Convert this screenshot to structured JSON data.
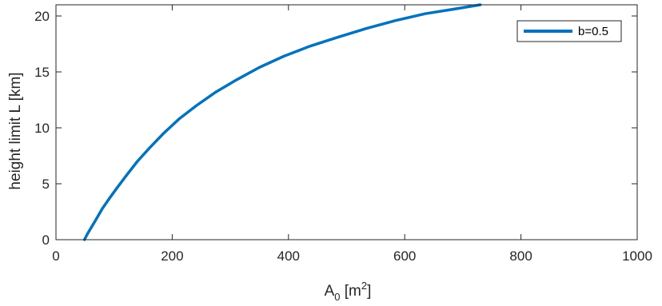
{
  "chart_data": {
    "type": "line",
    "xlabel": {
      "base": "A",
      "sub": "0",
      "unit_open": " [m",
      "sup": "2",
      "unit_close": "]"
    },
    "ylabel": "height limit L [km]",
    "xlim": [
      0,
      1000
    ],
    "ylim": [
      0,
      21
    ],
    "xticks": [
      0,
      200,
      400,
      600,
      800,
      1000
    ],
    "xtick_labels": [
      "0",
      "200",
      "400",
      "600",
      "800",
      "1000"
    ],
    "yticks": [
      0,
      5,
      10,
      15,
      20
    ],
    "ytick_labels": [
      "0",
      "5",
      "10",
      "15",
      "20"
    ],
    "grid": false,
    "legend_position": "top-right",
    "colors": {
      "series": "#0072BD",
      "axis": "#262626",
      "legend_border": "#262626"
    },
    "series": [
      {
        "name": "b=0.5",
        "x": [
          49,
          55,
          62,
          70,
          80,
          92,
          106,
          122,
          140,
          161,
          185,
          212,
          242,
          275,
          311,
          350,
          392,
          437,
          485,
          535,
          585,
          635,
          683,
          730
        ],
        "y": [
          0.0,
          0.6,
          1.2,
          1.9,
          2.8,
          3.7,
          4.7,
          5.8,
          7.0,
          8.2,
          9.5,
          10.8,
          12.0,
          13.2,
          14.3,
          15.4,
          16.4,
          17.3,
          18.1,
          18.9,
          19.6,
          20.2,
          20.6,
          21.0
        ]
      }
    ]
  }
}
